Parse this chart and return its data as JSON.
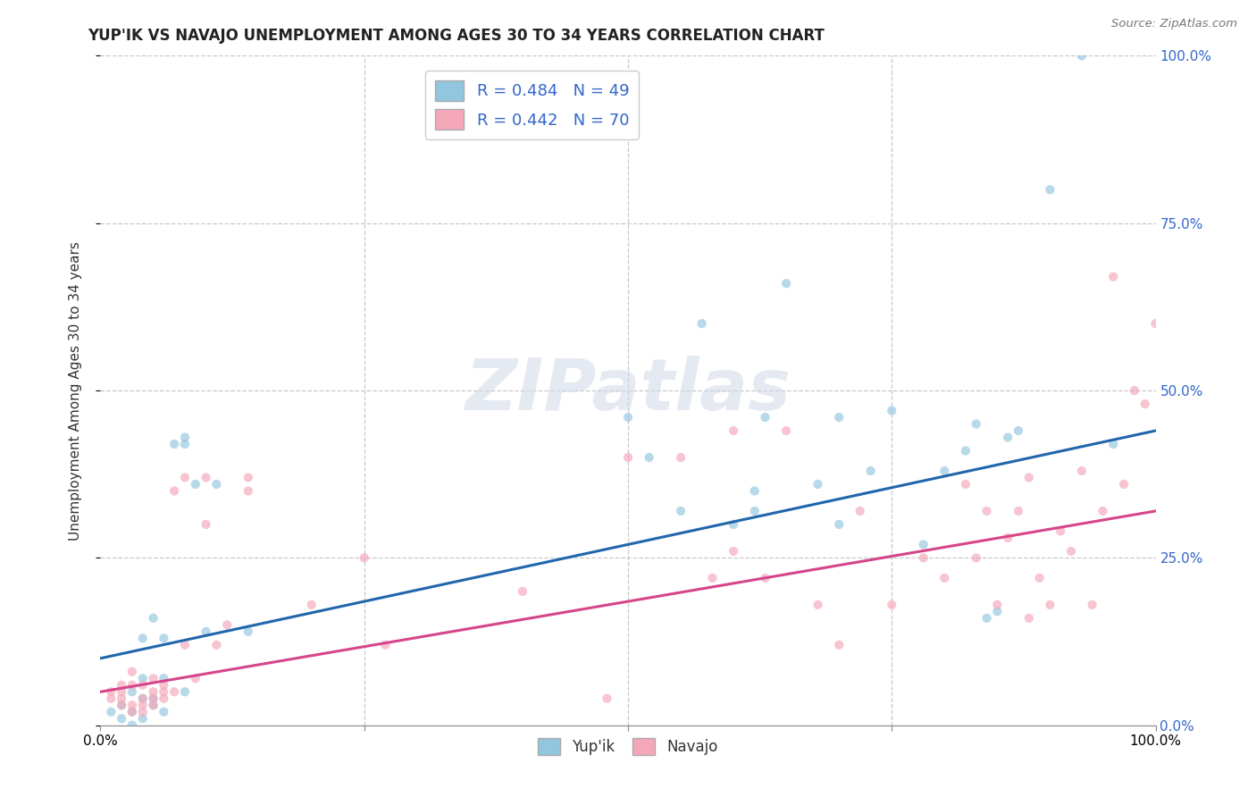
{
  "title": "YUP'IK VS NAVAJO UNEMPLOYMENT AMONG AGES 30 TO 34 YEARS CORRELATION CHART",
  "source": "Source: ZipAtlas.com",
  "ylabel": "Unemployment Among Ages 30 to 34 years",
  "xmin": 0.0,
  "xmax": 1.0,
  "ymin": 0.0,
  "ymax": 1.0,
  "ytick_vals": [
    0.0,
    0.25,
    0.5,
    0.75,
    1.0
  ],
  "ytick_labels": [
    "0.0%",
    "25.0%",
    "50.0%",
    "75.0%",
    "100.0%"
  ],
  "xtick_vals": [
    0.0,
    0.25,
    0.5,
    0.75,
    1.0
  ],
  "legend_labels": [
    "Yup'ik",
    "Navajo"
  ],
  "legend_r": [
    "R = 0.484",
    "R = 0.442"
  ],
  "legend_n": [
    "N = 49",
    "N = 70"
  ],
  "blue_color": "#92c5de",
  "pink_color": "#f4a7b9",
  "blue_line_color": "#2166ac",
  "pink_line_color": "#d6458a",
  "right_tick_color": "#3366cc",
  "legend_text_color": "#3366cc",
  "watermark_text": "ZIPatlas",
  "blue_scatter_x": [
    0.01,
    0.02,
    0.02,
    0.03,
    0.03,
    0.03,
    0.04,
    0.04,
    0.04,
    0.04,
    0.05,
    0.05,
    0.05,
    0.06,
    0.06,
    0.06,
    0.07,
    0.08,
    0.08,
    0.08,
    0.09,
    0.1,
    0.11,
    0.14,
    0.5,
    0.52,
    0.55,
    0.57,
    0.6,
    0.62,
    0.62,
    0.63,
    0.65,
    0.68,
    0.7,
    0.7,
    0.73,
    0.75,
    0.78,
    0.8,
    0.82,
    0.83,
    0.84,
    0.85,
    0.86,
    0.87,
    0.9,
    0.93,
    0.96
  ],
  "blue_scatter_y": [
    0.02,
    0.03,
    0.01,
    0.0,
    0.02,
    0.05,
    0.04,
    0.13,
    0.01,
    0.07,
    0.03,
    0.16,
    0.04,
    0.13,
    0.02,
    0.07,
    0.42,
    0.42,
    0.43,
    0.05,
    0.36,
    0.14,
    0.36,
    0.14,
    0.46,
    0.4,
    0.32,
    0.6,
    0.3,
    0.32,
    0.35,
    0.46,
    0.66,
    0.36,
    0.46,
    0.3,
    0.38,
    0.47,
    0.27,
    0.38,
    0.41,
    0.45,
    0.16,
    0.17,
    0.43,
    0.44,
    0.8,
    1.0,
    0.42
  ],
  "pink_scatter_x": [
    0.01,
    0.01,
    0.02,
    0.02,
    0.02,
    0.02,
    0.03,
    0.03,
    0.03,
    0.03,
    0.04,
    0.04,
    0.04,
    0.04,
    0.05,
    0.05,
    0.05,
    0.05,
    0.06,
    0.06,
    0.06,
    0.07,
    0.07,
    0.08,
    0.08,
    0.09,
    0.1,
    0.1,
    0.11,
    0.12,
    0.14,
    0.14,
    0.2,
    0.25,
    0.27,
    0.4,
    0.48,
    0.5,
    0.55,
    0.58,
    0.6,
    0.6,
    0.63,
    0.65,
    0.68,
    0.7,
    0.72,
    0.75,
    0.78,
    0.8,
    0.82,
    0.83,
    0.84,
    0.85,
    0.86,
    0.87,
    0.88,
    0.88,
    0.89,
    0.9,
    0.91,
    0.92,
    0.93,
    0.94,
    0.95,
    0.96,
    0.97,
    0.98,
    0.99,
    1.0
  ],
  "pink_scatter_y": [
    0.04,
    0.05,
    0.03,
    0.04,
    0.05,
    0.06,
    0.02,
    0.03,
    0.06,
    0.08,
    0.02,
    0.03,
    0.04,
    0.06,
    0.03,
    0.04,
    0.05,
    0.07,
    0.04,
    0.05,
    0.06,
    0.05,
    0.35,
    0.12,
    0.37,
    0.07,
    0.3,
    0.37,
    0.12,
    0.15,
    0.35,
    0.37,
    0.18,
    0.25,
    0.12,
    0.2,
    0.04,
    0.4,
    0.4,
    0.22,
    0.44,
    0.26,
    0.22,
    0.44,
    0.18,
    0.12,
    0.32,
    0.18,
    0.25,
    0.22,
    0.36,
    0.25,
    0.32,
    0.18,
    0.28,
    0.32,
    0.16,
    0.37,
    0.22,
    0.18,
    0.29,
    0.26,
    0.38,
    0.18,
    0.32,
    0.67,
    0.36,
    0.5,
    0.48,
    0.6
  ],
  "blue_trend_y_start": 0.1,
  "blue_trend_y_end": 0.44,
  "pink_trend_y_start": 0.05,
  "pink_trend_y_end": 0.32,
  "background_color": "#ffffff",
  "grid_color": "#c8c8c8",
  "title_fontsize": 12,
  "axis_label_fontsize": 11,
  "tick_fontsize": 11,
  "scatter_size": 55,
  "scatter_alpha": 0.65,
  "line_width": 2.2
}
